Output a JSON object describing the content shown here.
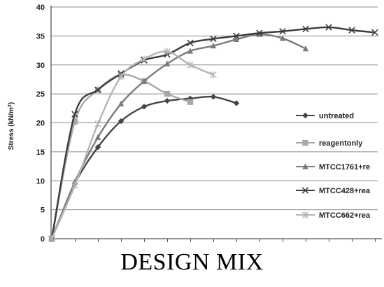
{
  "caption": "DESIGN MIX",
  "chart_data": {
    "type": "line",
    "title": "",
    "xlabel": "",
    "ylabel": "Stress (kN/m²)",
    "ylabel_main": "Stress (kN/m",
    "ylabel_sup": "2",
    "ylabel_end": ")",
    "ylim": [
      0,
      40
    ],
    "yticks": [
      0,
      5,
      10,
      15,
      20,
      25,
      30,
      35,
      40
    ],
    "xlim": [
      0,
      14
    ],
    "grid": true,
    "legend_position": "right",
    "series": [
      {
        "name": "untreated",
        "color": "#454545",
        "marker": "diamond",
        "x": [
          0,
          1,
          2,
          3,
          4,
          5,
          6,
          7,
          8
        ],
        "y": [
          0,
          9.5,
          15.8,
          20.3,
          22.8,
          23.8,
          24.2,
          24.5,
          23.4
        ]
      },
      {
        "name": "reagentonly",
        "color": "#a8a8a8",
        "marker": "square",
        "x": [
          0,
          1,
          2,
          3,
          4,
          5,
          6
        ],
        "y": [
          0,
          20.2,
          25.7,
          28.3,
          27.2,
          25.0,
          23.6
        ]
      },
      {
        "name": "MTCC1761+re",
        "color": "#7b7b7b",
        "marker": "triangle",
        "x": [
          0,
          1,
          2,
          3,
          4,
          5,
          6,
          7,
          8,
          9,
          10,
          11
        ],
        "y": [
          0,
          9.8,
          17.5,
          23.3,
          27.2,
          30.2,
          32.4,
          33.3,
          34.4,
          35.3,
          34.6,
          32.8
        ]
      },
      {
        "name": "MTCC428+rea",
        "color": "#3c3c3c",
        "marker": "x",
        "x": [
          0,
          1,
          2,
          3,
          4,
          5,
          6,
          7,
          8,
          9,
          10,
          11,
          12,
          13,
          14
        ],
        "y": [
          0,
          21.5,
          25.7,
          28.5,
          30.8,
          31.8,
          33.8,
          34.5,
          35.0,
          35.5,
          35.8,
          36.2,
          36.5,
          36.0,
          35.6
        ]
      },
      {
        "name": "MTCC662+rea",
        "color": "#b5b5b5",
        "marker": "asterisk",
        "x": [
          0,
          1,
          2,
          3,
          4,
          5,
          6,
          7
        ],
        "y": [
          0,
          9.2,
          19.8,
          28.0,
          31.0,
          32.3,
          30.0,
          28.3
        ]
      }
    ]
  }
}
